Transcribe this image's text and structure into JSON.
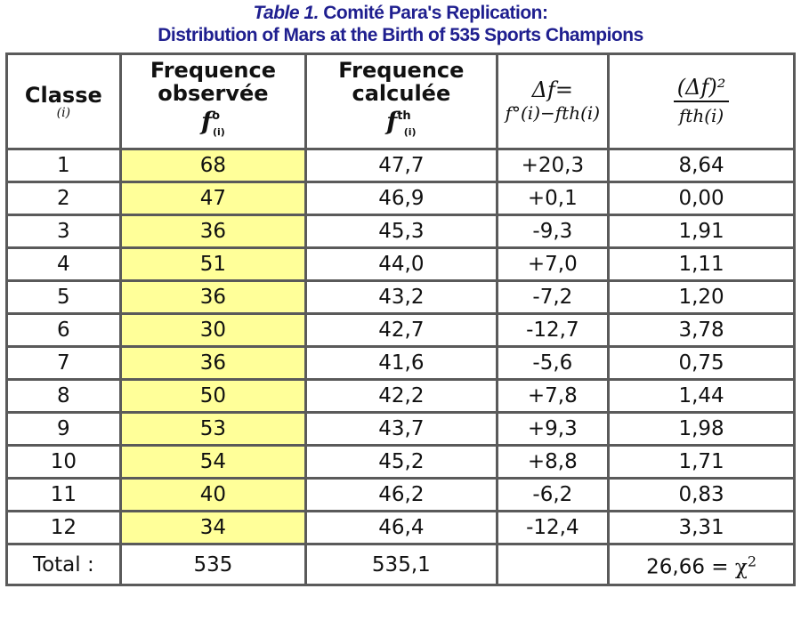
{
  "title": {
    "line1_italic": "Table 1.",
    "line1_rest": " Comité Para's Replication:",
    "line2": "Distribution of Mars at the Birth of 535 Sports Champions"
  },
  "headers": {
    "classe": "Classe",
    "classe_sub": "(i)",
    "obs_line1": "Frequence",
    "obs_line2": "observée",
    "obs_symbol": "f",
    "obs_sup": "o",
    "obs_sub": "(i)",
    "calc_line1": "Frequence",
    "calc_line2": "calculée",
    "calc_symbol": "f",
    "calc_sup": "th",
    "calc_sub": "(i)",
    "delta_line1": "Δf=",
    "delta_line2": "f°(i)−fth(i)",
    "ratio_num": "(Δf)²",
    "ratio_den": "fth(i)"
  },
  "colors": {
    "title": "#1f1f8f",
    "observed_bg": "#ffff99",
    "border": "#5a5a5a"
  },
  "rows": [
    {
      "classe": "1",
      "obs": "68",
      "calc": "47,7",
      "delta": "+20,3",
      "ratio": "8,64"
    },
    {
      "classe": "2",
      "obs": "47",
      "calc": "46,9",
      "delta": "+0,1",
      "ratio": "0,00"
    },
    {
      "classe": "3",
      "obs": "36",
      "calc": "45,3",
      "delta": "-9,3",
      "ratio": "1,91"
    },
    {
      "classe": "4",
      "obs": "51",
      "calc": "44,0",
      "delta": "+7,0",
      "ratio": "1,11"
    },
    {
      "classe": "5",
      "obs": "36",
      "calc": "43,2",
      "delta": "-7,2",
      "ratio": "1,20"
    },
    {
      "classe": "6",
      "obs": "30",
      "calc": "42,7",
      "delta": "-12,7",
      "ratio": "3,78"
    },
    {
      "classe": "7",
      "obs": "36",
      "calc": "41,6",
      "delta": "-5,6",
      "ratio": "0,75"
    },
    {
      "classe": "8",
      "obs": "50",
      "calc": "42,2",
      "delta": "+7,8",
      "ratio": "1,44"
    },
    {
      "classe": "9",
      "obs": "53",
      "calc": "43,7",
      "delta": "+9,3",
      "ratio": "1,98"
    },
    {
      "classe": "10",
      "obs": "54",
      "calc": "45,2",
      "delta": "+8,8",
      "ratio": "1,71"
    },
    {
      "classe": "11",
      "obs": "40",
      "calc": "46,2",
      "delta": "-6,2",
      "ratio": "0,83"
    },
    {
      "classe": "12",
      "obs": "34",
      "calc": "46,4",
      "delta": "-12,4",
      "ratio": "3,31"
    }
  ],
  "total": {
    "label": "Total :",
    "obs": "535",
    "calc": "535,1",
    "delta": "",
    "ratio": "26,66 = ",
    "chi_symbol": "χ",
    "chi_sup": "2"
  }
}
